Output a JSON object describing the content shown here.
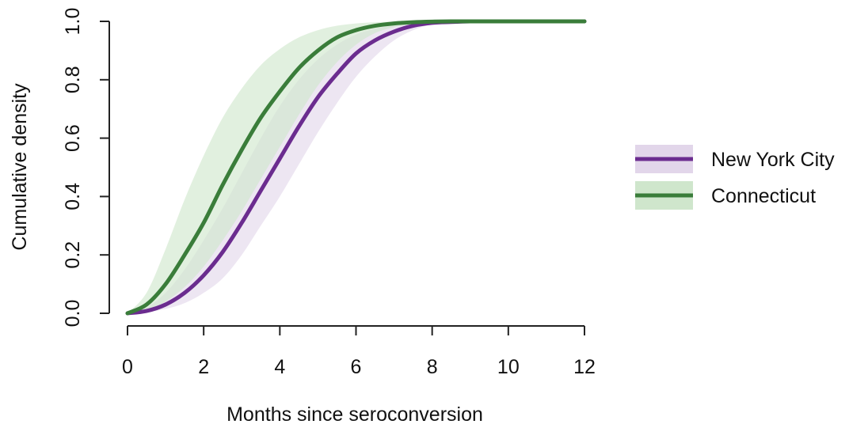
{
  "chart_data": {
    "type": "line",
    "title": "",
    "xlabel": "Months since seroconversion",
    "ylabel": "Cumulative density",
    "xlim": [
      0,
      12
    ],
    "ylim": [
      0,
      1
    ],
    "x_ticks": [
      0,
      2,
      4,
      6,
      8,
      10,
      12
    ],
    "y_ticks": [
      0,
      0.2,
      0.4,
      0.6,
      0.8,
      1
    ],
    "x_tick_labels": [
      "0",
      "2",
      "4",
      "6",
      "8",
      "10",
      "12"
    ],
    "y_tick_labels": [
      "0.0",
      "0.2",
      "0.4",
      "0.6",
      "0.8",
      "1.0"
    ],
    "x": [
      0,
      0.5,
      1,
      1.5,
      2,
      2.5,
      3,
      3.5,
      4,
      4.5,
      5,
      5.5,
      6,
      6.5,
      7,
      7.5,
      8,
      8.5,
      9,
      9.5,
      10,
      11,
      12
    ],
    "series": [
      {
        "name": "New York City",
        "color": "#6b2c8f",
        "band_color": "#e2d6ea",
        "values": [
          0,
          0.008,
          0.03,
          0.07,
          0.13,
          0.21,
          0.31,
          0.42,
          0.53,
          0.64,
          0.74,
          0.82,
          0.89,
          0.935,
          0.965,
          0.985,
          0.995,
          0.998,
          1,
          1,
          1,
          1,
          1
        ],
        "lower": [
          0,
          0.004,
          0.015,
          0.035,
          0.07,
          0.12,
          0.2,
          0.3,
          0.4,
          0.51,
          0.62,
          0.72,
          0.81,
          0.88,
          0.935,
          0.97,
          0.99,
          0.997,
          1,
          1,
          1,
          1,
          1
        ],
        "upper": [
          0,
          0.02,
          0.07,
          0.15,
          0.25,
          0.36,
          0.48,
          0.6,
          0.71,
          0.8,
          0.87,
          0.92,
          0.955,
          0.975,
          0.99,
          0.996,
          0.999,
          1,
          1,
          1,
          1,
          1,
          1
        ]
      },
      {
        "name": "Connecticut",
        "color": "#3a7d3a",
        "band_color": "#cfe6cc",
        "values": [
          0,
          0.03,
          0.1,
          0.2,
          0.31,
          0.44,
          0.56,
          0.67,
          0.76,
          0.84,
          0.9,
          0.945,
          0.97,
          0.985,
          0.993,
          0.997,
          0.999,
          1,
          1,
          1,
          1,
          1,
          1
        ],
        "lower": [
          0,
          0.01,
          0.04,
          0.09,
          0.16,
          0.25,
          0.35,
          0.46,
          0.57,
          0.68,
          0.78,
          0.86,
          0.92,
          0.96,
          0.98,
          0.992,
          0.997,
          1,
          1,
          1,
          1,
          1,
          1
        ],
        "upper": [
          0,
          0.07,
          0.22,
          0.39,
          0.54,
          0.67,
          0.77,
          0.85,
          0.905,
          0.945,
          0.97,
          0.985,
          0.993,
          0.997,
          0.999,
          1,
          1,
          1,
          1,
          1,
          1,
          1,
          1
        ]
      }
    ],
    "legend": {
      "position": "right"
    },
    "grid": false
  }
}
